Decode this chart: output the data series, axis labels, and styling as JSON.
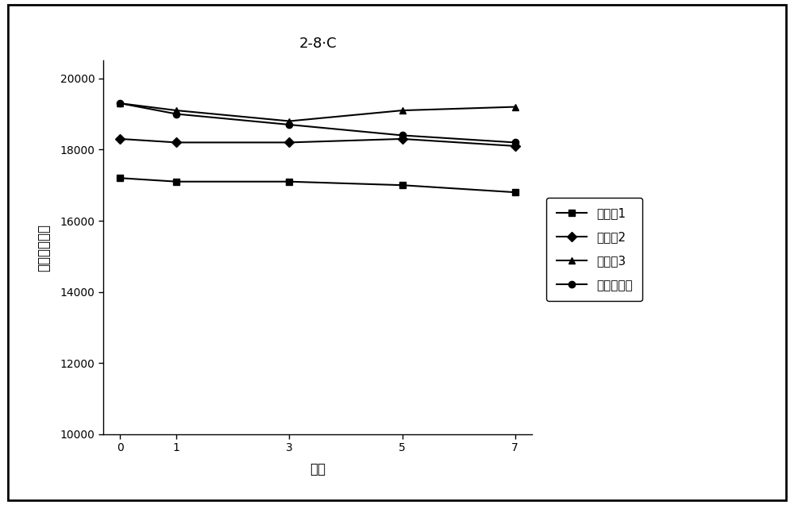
{
  "title": "2-8·C",
  "xlabel": "天数",
  "ylabel": "全自吸光度值",
  "x": [
    0,
    1,
    3,
    5,
    7
  ],
  "series": [
    {
      "label": "实施例1",
      "values": [
        17200,
        17100,
        17100,
        17000,
        16800
      ],
      "color": "#000000",
      "marker": "s",
      "linestyle": "-"
    },
    {
      "label": "实施例2",
      "values": [
        18300,
        18200,
        18200,
        18300,
        18100
      ],
      "color": "#000000",
      "marker": "D",
      "linestyle": "-"
    },
    {
      "label": "实施例3",
      "values": [
        19300,
        19100,
        18800,
        19100,
        19200
      ],
      "color": "#000000",
      "marker": "^",
      "linestyle": "-"
    },
    {
      "label": "对比实施例",
      "values": [
        19300,
        19000,
        18700,
        18400,
        18200
      ],
      "color": "#000000",
      "marker": "o",
      "linestyle": "-"
    }
  ],
  "ylim": [
    10000,
    20500
  ],
  "yticks": [
    10000,
    12000,
    14000,
    16000,
    18000,
    20000
  ],
  "xlim": [
    -0.3,
    7.3
  ],
  "background_color": "#ffffff",
  "border_color": "#000000",
  "title_fontsize": 13,
  "label_fontsize": 12,
  "tick_fontsize": 10,
  "legend_fontsize": 11,
  "linewidth": 1.5,
  "markersize": 6
}
